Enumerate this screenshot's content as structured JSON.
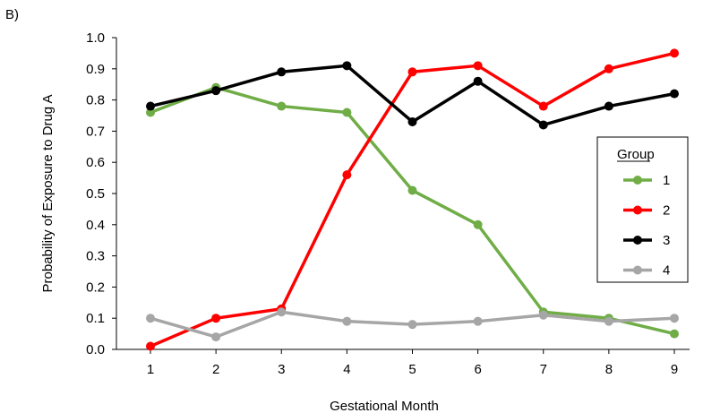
{
  "panel_label": "B)",
  "chart_data": {
    "type": "line",
    "xlabel": "Gestational Month",
    "ylabel": "Probability of Exposure to Drug A",
    "x": [
      1,
      2,
      3,
      4,
      5,
      6,
      7,
      8,
      9
    ],
    "xlim": [
      1,
      9
    ],
    "ylim": [
      0.0,
      1.0
    ],
    "yticks": [
      "0.0",
      "0.1",
      "0.2",
      "0.3",
      "0.4",
      "0.5",
      "0.6",
      "0.7",
      "0.8",
      "0.9",
      "1.0"
    ],
    "grid": false,
    "legend": {
      "title": "Group",
      "placement": "right"
    },
    "series": [
      {
        "name": "1",
        "color": "#70AD47",
        "values": [
          0.76,
          0.84,
          0.78,
          0.76,
          0.51,
          0.4,
          0.12,
          0.1,
          0.05
        ]
      },
      {
        "name": "2",
        "color": "#FF0000",
        "values": [
          0.01,
          0.1,
          0.13,
          0.56,
          0.89,
          0.91,
          0.78,
          0.9,
          0.95
        ]
      },
      {
        "name": "3",
        "color": "#000000",
        "values": [
          0.78,
          0.83,
          0.89,
          0.91,
          0.73,
          0.86,
          0.72,
          0.78,
          0.82
        ]
      },
      {
        "name": "4",
        "color": "#A6A6A6",
        "values": [
          0.1,
          0.04,
          0.12,
          0.09,
          0.08,
          0.09,
          0.11,
          0.09,
          0.1
        ]
      }
    ]
  }
}
